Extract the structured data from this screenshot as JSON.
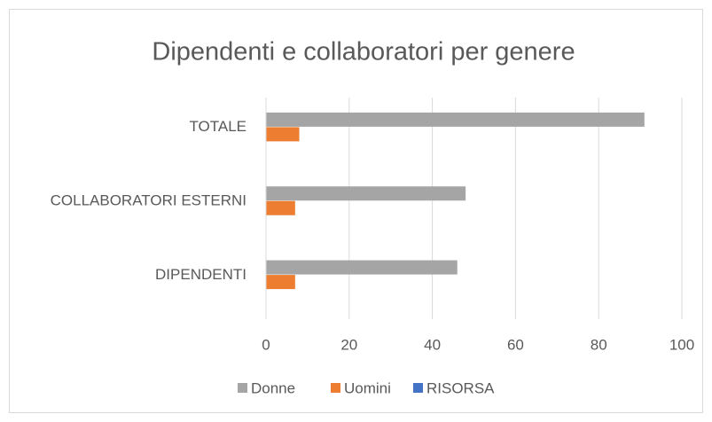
{
  "chart_data": {
    "type": "bar",
    "orientation": "horizontal",
    "title": "Dipendenti e collaboratori per genere",
    "categories": [
      "DIPENDENTI",
      "COLLABORATORI ESTERNI",
      "TOTALE"
    ],
    "series": [
      {
        "name": "Donne",
        "color": "#a5a5a5",
        "values": [
          46,
          48,
          91
        ]
      },
      {
        "name": "Uomini",
        "color": "#ed7d31",
        "values": [
          7,
          7,
          8
        ]
      },
      {
        "name": "RISORSA",
        "color": "#4472c4",
        "values": [
          null,
          null,
          null
        ]
      }
    ],
    "xlim": [
      0,
      100
    ],
    "xticks": [
      0,
      20,
      40,
      60,
      80,
      100
    ],
    "grid": true,
    "legend": "bottom"
  }
}
